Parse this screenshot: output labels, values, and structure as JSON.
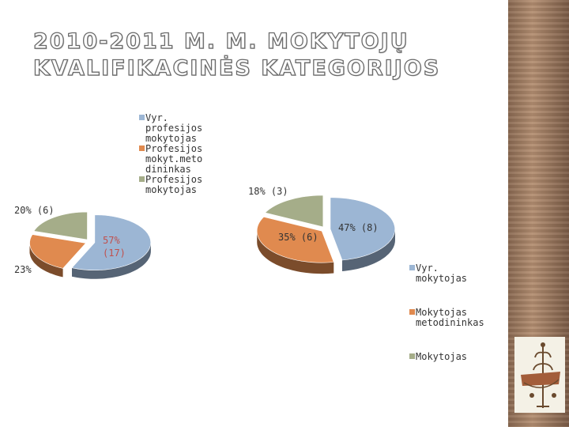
{
  "title": {
    "line1": "2010-2011 M. M. MOKYTOJŲ",
    "line2": "KVALIFIKACINĖS KATEGORIJOS"
  },
  "colors": {
    "blue": "#9cb6d4",
    "orange": "#e08a4f",
    "green": "#a5ad89",
    "label_red": "#c0504d"
  },
  "chart_data": [
    {
      "type": "pie",
      "style": "3d-exploded",
      "legend": "top",
      "series": [
        {
          "name": "Vyr. profesijos mokytojas",
          "legend_lines": [
            "Vyr.",
            "profesijos",
            "mokytojas"
          ],
          "value": 17,
          "percent_label": "57%",
          "count_label": "(17)",
          "color": "#9cb6d4"
        },
        {
          "name": "Profesijos mokyt.metodininkas",
          "legend_lines": [
            "Profesijos",
            "mokyt.meto",
            "dininkas"
          ],
          "value": 7,
          "percent_label": "23%",
          "count_label": "",
          "color": "#e08a4f"
        },
        {
          "name": "Profesijos mokytojas",
          "legend_lines": [
            "Profesijos",
            "mokytojas"
          ],
          "value": 6,
          "percent_label": "20%",
          "count_label": "(6)",
          "color": "#a5ad89"
        }
      ]
    },
    {
      "type": "pie",
      "style": "3d-exploded",
      "legend": "right",
      "series": [
        {
          "name": "Vyr. mokytojas",
          "legend_lines": [
            "Vyr.",
            "mokytojas"
          ],
          "value": 8,
          "percent_label": "47%",
          "count_label": "(8)",
          "color": "#9cb6d4"
        },
        {
          "name": "Mokytojas metodininkas",
          "legend_lines": [
            "Mokytojas",
            "metodininkas"
          ],
          "value": 6,
          "percent_label": "35%",
          "count_label": "(6)",
          "color": "#e08a4f"
        },
        {
          "name": "Mokytojas",
          "legend_lines": [
            "Mokytojas"
          ],
          "value": 3,
          "percent_label": "18%",
          "count_label": "(3)",
          "color": "#a5ad89"
        }
      ]
    }
  ]
}
